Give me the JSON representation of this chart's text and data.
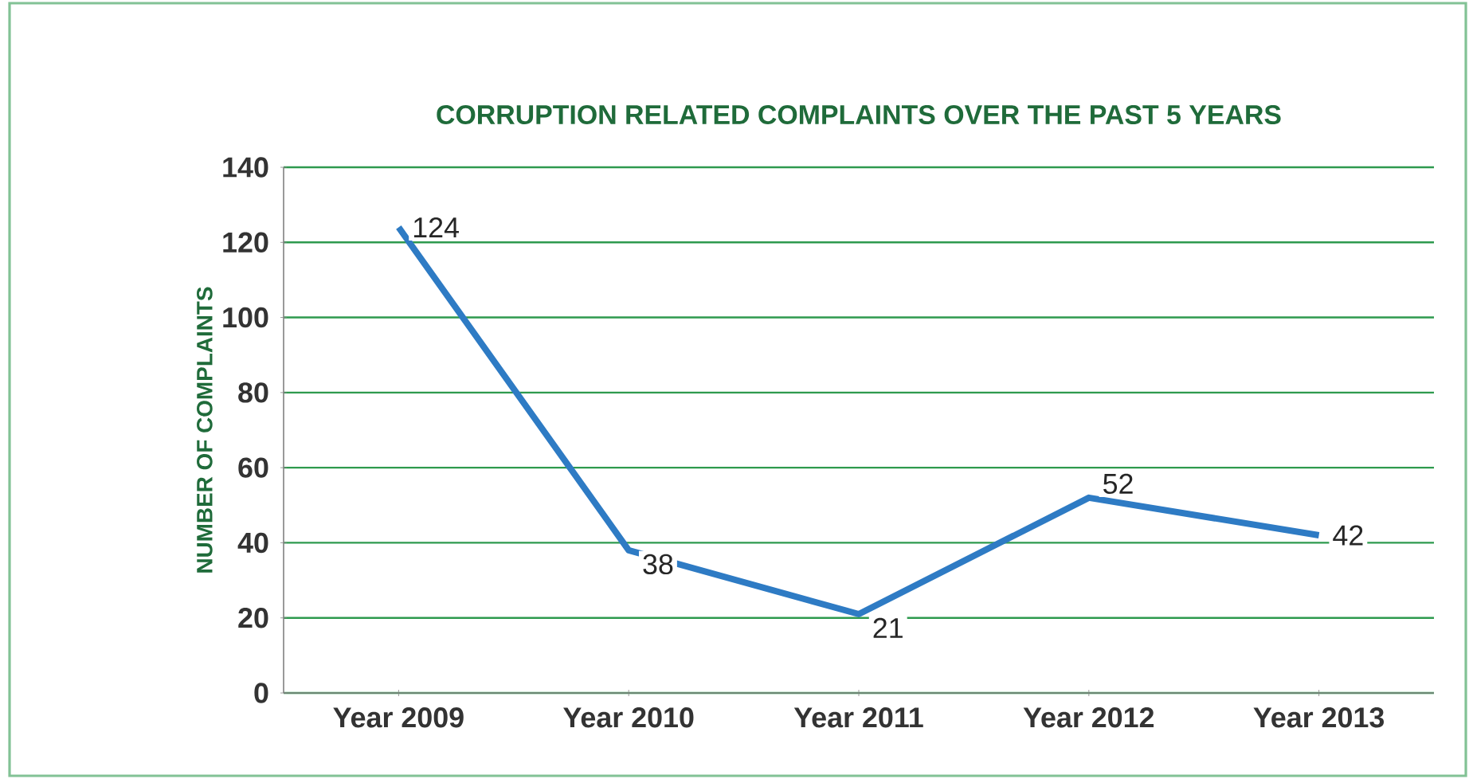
{
  "chart_data": {
    "type": "line",
    "title": "CORRUPTION RELATED COMPLAINTS OVER THE PAST 5 YEARS",
    "ylabel": "NUMBER OF COMPLAINTS",
    "categories": [
      "Year 2009",
      "Year 2010",
      "Year 2011",
      "Year 2012",
      "Year 2013"
    ],
    "values": [
      124,
      38,
      21,
      52,
      42
    ],
    "value_labels": [
      "124",
      "38",
      "21",
      "52",
      "42"
    ],
    "color": "#2e7bc4",
    "ylim": [
      0,
      140
    ],
    "yticks": [
      0,
      20,
      40,
      60,
      80,
      100,
      120,
      140
    ],
    "grid": "y",
    "marker": "none",
    "line_style": "solid"
  }
}
